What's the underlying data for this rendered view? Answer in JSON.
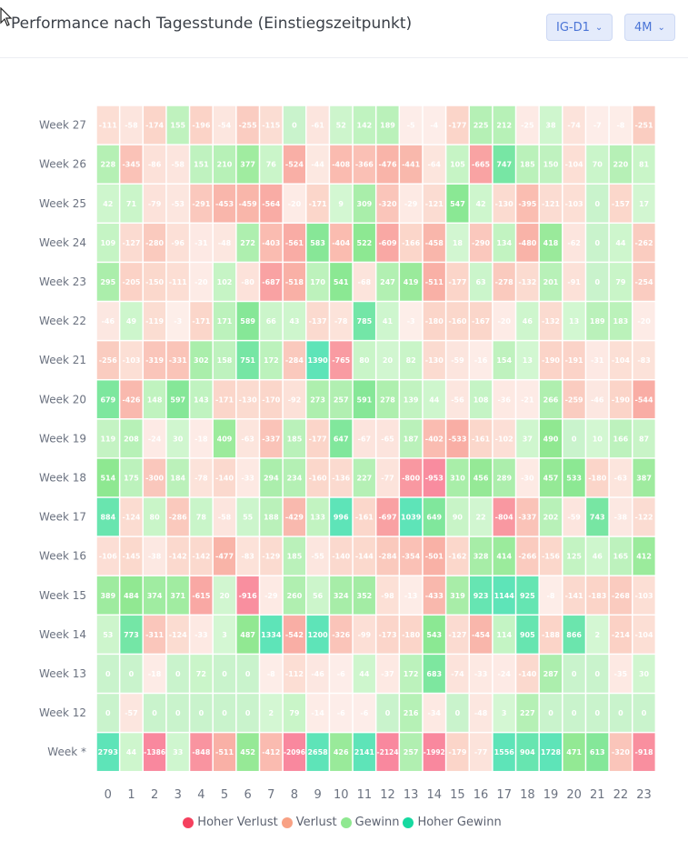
{
  "header": {
    "title": "Performance nach Tagesstunde (Einstiegszeitpunkt)",
    "dropdown_instrument": "IG-D1",
    "dropdown_period": "4M"
  },
  "colors": {
    "hoher_verlust": "#f5405e",
    "verlust": "#f8a184",
    "gewinn": "#8fe890",
    "hoher_gewinn": "#16d9a0"
  },
  "legend": [
    {
      "label": "Hoher Verlust",
      "color": "#f5405e"
    },
    {
      "label": "Verlust",
      "color": "#f8a184"
    },
    {
      "label": "Gewinn",
      "color": "#8fe890"
    },
    {
      "label": "Hoher Gewinn",
      "color": "#16d9a0"
    }
  ],
  "chart_data": {
    "type": "heatmap",
    "x": [
      "0",
      "1",
      "2",
      "3",
      "4",
      "5",
      "6",
      "7",
      "8",
      "9",
      "10",
      "11",
      "12",
      "13",
      "14",
      "15",
      "16",
      "17",
      "18",
      "19",
      "20",
      "21",
      "22",
      "23"
    ],
    "y": [
      "Week 27",
      "Week 26",
      "Week 25",
      "Week 24",
      "Week 23",
      "Week 22",
      "Week 21",
      "Week 20",
      "Week 19",
      "Week 18",
      "Week 17",
      "Week 16",
      "Week 15",
      "Week 14",
      "Week 13",
      "Week 12",
      "Week *"
    ],
    "values": [
      [
        -111,
        -58,
        -174,
        155,
        -196,
        -54,
        -255,
        -115,
        0,
        -61,
        52,
        142,
        189,
        -5,
        -4,
        -177,
        225,
        212,
        -25,
        38,
        -74,
        -7,
        -8,
        -251
      ],
      [
        228,
        -345,
        -86,
        -58,
        151,
        210,
        377,
        76,
        -524,
        -44,
        -408,
        -366,
        -476,
        -441,
        -64,
        105,
        -665,
        747,
        185,
        150,
        -104,
        70,
        220,
        81
      ],
      [
        42,
        71,
        -79,
        -53,
        -291,
        -453,
        -459,
        -564,
        -20,
        -171,
        9,
        309,
        -320,
        -29,
        -121,
        547,
        42,
        -130,
        -395,
        -121,
        -103,
        0,
        -157,
        17
      ],
      [
        109,
        -127,
        -280,
        -96,
        -31,
        -48,
        272,
        -403,
        -561,
        583,
        -404,
        522,
        -609,
        -166,
        -458,
        18,
        -290,
        134,
        -480,
        418,
        -62,
        0,
        44,
        -262
      ],
      [
        295,
        -205,
        -150,
        -111,
        -20,
        102,
        -80,
        -687,
        -518,
        170,
        541,
        -68,
        247,
        419,
        -511,
        -177,
        63,
        -278,
        -132,
        201,
        -91,
        0,
        79,
        -254
      ],
      [
        -46,
        49,
        -119,
        -3,
        -171,
        171,
        589,
        66,
        43,
        -137,
        -78,
        785,
        41,
        -3,
        -180,
        -160,
        -167,
        -20,
        46,
        -132,
        13,
        189,
        183,
        -20
      ],
      [
        -256,
        -103,
        -319,
        -331,
        302,
        158,
        751,
        172,
        -284,
        1390,
        -765,
        80,
        20,
        82,
        -130,
        -59,
        -16,
        154,
        13,
        -190,
        -191,
        -31,
        -104,
        -83
      ],
      [
        679,
        -426,
        148,
        597,
        143,
        -171,
        -130,
        -170,
        -92,
        273,
        257,
        591,
        278,
        139,
        44,
        -56,
        108,
        -36,
        -21,
        266,
        -259,
        -46,
        -190,
        -544
      ],
      [
        119,
        208,
        -24,
        30,
        -18,
        409,
        -63,
        -337,
        185,
        -177,
        647,
        -67,
        -65,
        187,
        -402,
        -533,
        -161,
        -102,
        37,
        490,
        0,
        10,
        166,
        87
      ],
      [
        514,
        175,
        -300,
        184,
        -78,
        -140,
        -33,
        294,
        234,
        -160,
        -136,
        227,
        -77,
        -800,
        -953,
        310,
        456,
        289,
        -30,
        457,
        533,
        -180,
        -63,
        387
      ],
      [
        884,
        -124,
        80,
        -286,
        78,
        -58,
        55,
        188,
        -429,
        133,
        996,
        -161,
        -697,
        1039,
        649,
        90,
        22,
        -804,
        -337,
        202,
        -59,
        743,
        -38,
        -122
      ],
      [
        -106,
        -145,
        -38,
        -142,
        -142,
        -477,
        -83,
        -129,
        185,
        -55,
        -140,
        -144,
        -284,
        -354,
        -501,
        -162,
        328,
        414,
        -266,
        -156,
        125,
        46,
        165,
        412
      ],
      [
        389,
        484,
        374,
        371,
        -615,
        20,
        -916,
        -29,
        260,
        56,
        324,
        352,
        -98,
        -13,
        -433,
        319,
        923,
        1144,
        925,
        -8,
        -141,
        -183,
        -268,
        -103
      ],
      [
        53,
        773,
        -311,
        -124,
        -33,
        3,
        487,
        1334,
        -542,
        1200,
        -326,
        -99,
        -173,
        -180,
        543,
        -127,
        -454,
        114,
        905,
        -188,
        866,
        2,
        -214,
        -104
      ],
      [
        0,
        0,
        -18,
        0,
        72,
        0,
        0,
        -8,
        -112,
        -46,
        -6,
        44,
        -37,
        172,
        683,
        -74,
        -33,
        -24,
        -140,
        287,
        0,
        0,
        -35,
        30
      ],
      [
        0,
        -57,
        0,
        0,
        0,
        0,
        0,
        2,
        79,
        -14,
        -6,
        -6,
        0,
        216,
        -34,
        0,
        -48,
        3,
        227,
        0,
        0,
        0,
        0,
        0
      ],
      [
        2793,
        44,
        -1386,
        33,
        -848,
        -511,
        452,
        -412,
        -2096,
        2658,
        426,
        2141,
        -2124,
        257,
        -1992,
        -179,
        -77,
        1556,
        904,
        1728,
        471,
        613,
        -320,
        -918
      ]
    ]
  }
}
